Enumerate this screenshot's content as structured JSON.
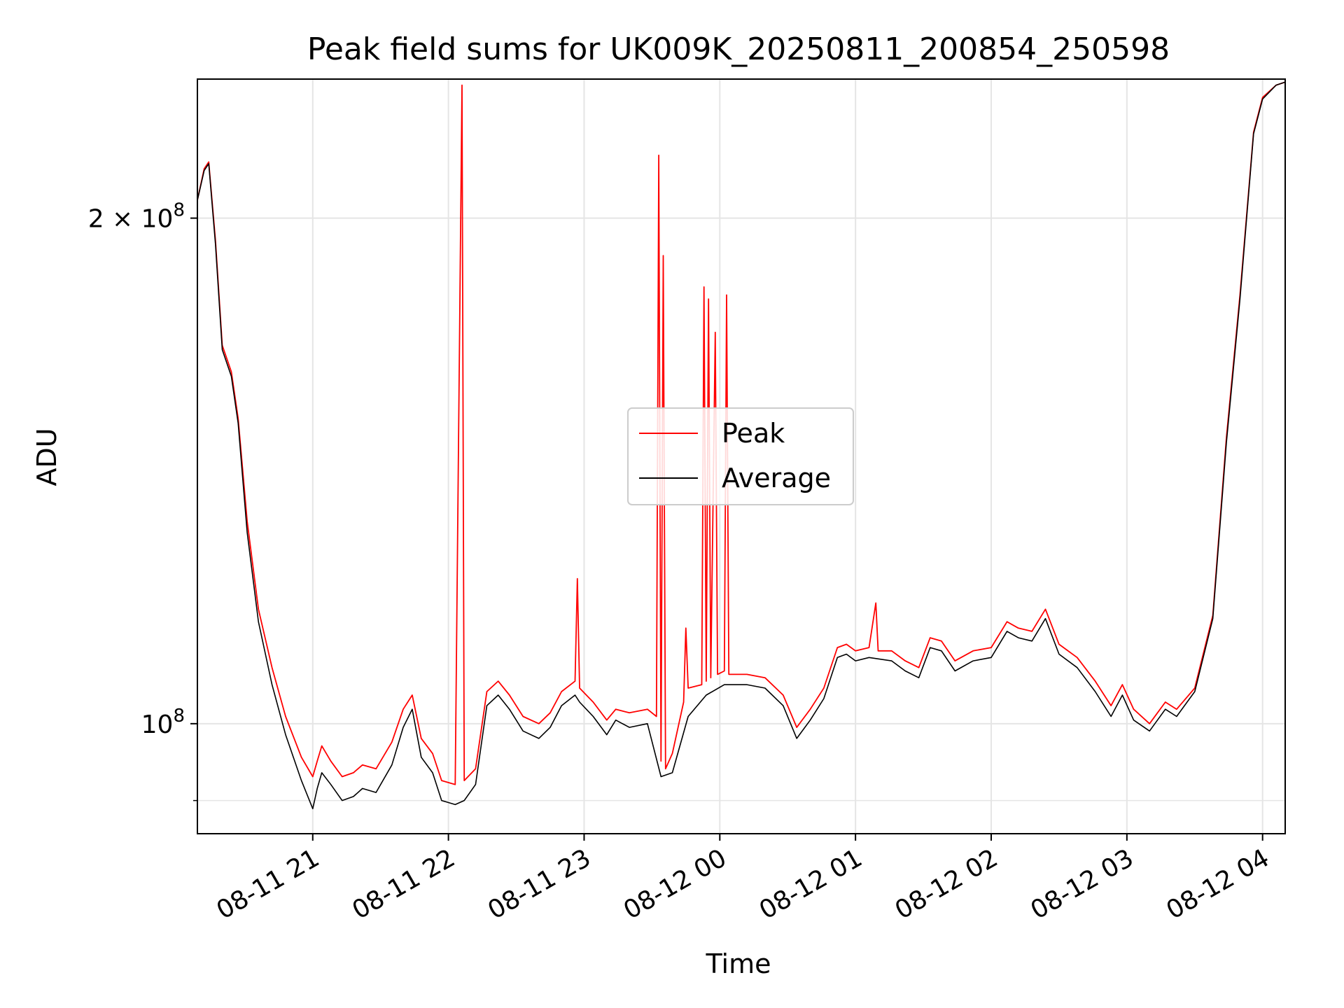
{
  "chart_data": {
    "type": "line",
    "title": "Peak field sums for UK009K_20250811_200854_250598",
    "xlabel": "Time",
    "ylabel": "ADU",
    "yscale": "log",
    "grid": true,
    "legend_position": "center",
    "x_ticks": [
      "08-11 21",
      "08-11 22",
      "08-11 23",
      "08-12 00",
      "08-12 01",
      "08-12 02",
      "08-12 03",
      "08-12 04"
    ],
    "y_ticks": [
      {
        "value": 100000000,
        "base": "10",
        "exp": "8"
      },
      {
        "value": 200000000,
        "base": "2 × 10",
        "exp": "8"
      }
    ],
    "xlim": [
      "2025-08-11 20:09",
      "2025-08-12 04:10"
    ],
    "ylim": [
      86000000,
      242000000
    ],
    "series": [
      {
        "name": "Peak",
        "color": "#ff0000",
        "points": [
          [
            "2025-08-11 20:09",
            205000000
          ],
          [
            "2025-08-11 20:12",
            214000000
          ],
          [
            "2025-08-11 20:14",
            216000000
          ],
          [
            "2025-08-11 20:17",
            194000000
          ],
          [
            "2025-08-11 20:20",
            168000000
          ],
          [
            "2025-08-11 20:24",
            162000000
          ],
          [
            "2025-08-11 20:27",
            152000000
          ],
          [
            "2025-08-11 20:31",
            132000000
          ],
          [
            "2025-08-11 20:36",
            117000000
          ],
          [
            "2025-08-11 20:42",
            108000000
          ],
          [
            "2025-08-11 20:48",
            101000000
          ],
          [
            "2025-08-11 20:55",
            95500000
          ],
          [
            "2025-08-11 21:00",
            93000000
          ],
          [
            "2025-08-11 21:02",
            95000000
          ],
          [
            "2025-08-11 21:04",
            97000000
          ],
          [
            "2025-08-11 21:08",
            95000000
          ],
          [
            "2025-08-11 21:13",
            93000000
          ],
          [
            "2025-08-11 21:18",
            93500000
          ],
          [
            "2025-08-11 21:22",
            94500000
          ],
          [
            "2025-08-11 21:28",
            94000000
          ],
          [
            "2025-08-11 21:35",
            97500000
          ],
          [
            "2025-08-11 21:40",
            102000000
          ],
          [
            "2025-08-11 21:44",
            104000000
          ],
          [
            "2025-08-11 21:48",
            98000000
          ],
          [
            "2025-08-11 21:53",
            96000000
          ],
          [
            "2025-08-11 21:57",
            92500000
          ],
          [
            "2025-08-11 22:03",
            92000000
          ],
          [
            "2025-08-11 22:06",
            240000000
          ],
          [
            "2025-08-11 22:07",
            92500000
          ],
          [
            "2025-08-11 22:12",
            94000000
          ],
          [
            "2025-08-11 22:17",
            104500000
          ],
          [
            "2025-08-11 22:22",
            106000000
          ],
          [
            "2025-08-11 22:27",
            104000000
          ],
          [
            "2025-08-11 22:33",
            101000000
          ],
          [
            "2025-08-11 22:40",
            100000000
          ],
          [
            "2025-08-11 22:45",
            101500000
          ],
          [
            "2025-08-11 22:50",
            104500000
          ],
          [
            "2025-08-11 22:56",
            106000000
          ],
          [
            "2025-08-11 22:57",
            122000000
          ],
          [
            "2025-08-11 22:58",
            105000000
          ],
          [
            "2025-08-11 23:04",
            103000000
          ],
          [
            "2025-08-11 23:10",
            100500000
          ],
          [
            "2025-08-11 23:14",
            102000000
          ],
          [
            "2025-08-11 23:20",
            101500000
          ],
          [
            "2025-08-11 23:28",
            102000000
          ],
          [
            "2025-08-11 23:32",
            101000000
          ],
          [
            "2025-08-11 23:33",
            218000000
          ],
          [
            "2025-08-11 23:34",
            95000000
          ],
          [
            "2025-08-11 23:35",
            190000000
          ],
          [
            "2025-08-11 23:36",
            94000000
          ],
          [
            "2025-08-11 23:39",
            96000000
          ],
          [
            "2025-08-11 23:44",
            103000000
          ],
          [
            "2025-08-11 23:45",
            114000000
          ],
          [
            "2025-08-11 23:46",
            105000000
          ],
          [
            "2025-08-11 23:52",
            105500000
          ],
          [
            "2025-08-11 23:53",
            182000000
          ],
          [
            "2025-08-11 23:54",
            106000000
          ],
          [
            "2025-08-11 23:55",
            179000000
          ],
          [
            "2025-08-11 23:56",
            106500000
          ],
          [
            "2025-08-11 23:58",
            171000000
          ],
          [
            "2025-08-11 23:59",
            107000000
          ],
          [
            "2025-08-12 00:02",
            107500000
          ],
          [
            "2025-08-12 00:03",
            180000000
          ],
          [
            "2025-08-12 00:04",
            107000000
          ],
          [
            "2025-08-12 00:12",
            107000000
          ],
          [
            "2025-08-12 00:20",
            106500000
          ],
          [
            "2025-08-12 00:28",
            104000000
          ],
          [
            "2025-08-12 00:34",
            99500000
          ],
          [
            "2025-08-12 00:40",
            102000000
          ],
          [
            "2025-08-12 00:46",
            105000000
          ],
          [
            "2025-08-12 00:52",
            111000000
          ],
          [
            "2025-08-12 00:56",
            111500000
          ],
          [
            "2025-08-12 01:00",
            110500000
          ],
          [
            "2025-08-12 01:06",
            111000000
          ],
          [
            "2025-08-12 01:09",
            118000000
          ],
          [
            "2025-08-12 01:10",
            110500000
          ],
          [
            "2025-08-12 01:16",
            110500000
          ],
          [
            "2025-08-12 01:22",
            109000000
          ],
          [
            "2025-08-12 01:28",
            108000000
          ],
          [
            "2025-08-12 01:33",
            112500000
          ],
          [
            "2025-08-12 01:38",
            112000000
          ],
          [
            "2025-08-12 01:44",
            109000000
          ],
          [
            "2025-08-12 01:52",
            110500000
          ],
          [
            "2025-08-12 02:00",
            111000000
          ],
          [
            "2025-08-12 02:07",
            115000000
          ],
          [
            "2025-08-12 02:12",
            114000000
          ],
          [
            "2025-08-12 02:18",
            113500000
          ],
          [
            "2025-08-12 02:24",
            117000000
          ],
          [
            "2025-08-12 02:30",
            111500000
          ],
          [
            "2025-08-12 02:38",
            109500000
          ],
          [
            "2025-08-12 02:46",
            106000000
          ],
          [
            "2025-08-12 02:53",
            102500000
          ],
          [
            "2025-08-12 02:58",
            105500000
          ],
          [
            "2025-08-12 03:03",
            102000000
          ],
          [
            "2025-08-12 03:10",
            100000000
          ],
          [
            "2025-08-12 03:17",
            103000000
          ],
          [
            "2025-08-12 03:22",
            102000000
          ],
          [
            "2025-08-12 03:30",
            105000000
          ],
          [
            "2025-08-12 03:38",
            116000000
          ],
          [
            "2025-08-12 03:44",
            148000000
          ],
          [
            "2025-08-12 03:50",
            180000000
          ],
          [
            "2025-08-12 03:56",
            225000000
          ],
          [
            "2025-08-12 04:00",
            236000000
          ],
          [
            "2025-08-12 04:06",
            240000000
          ],
          [
            "2025-08-12 04:10",
            241000000
          ]
        ]
      },
      {
        "name": "Average",
        "color": "#000000",
        "points": [
          [
            "2025-08-11 20:09",
            205000000
          ],
          [
            "2025-08-11 20:12",
            213500000
          ],
          [
            "2025-08-11 20:14",
            215500000
          ],
          [
            "2025-08-11 20:17",
            193000000
          ],
          [
            "2025-08-11 20:20",
            167000000
          ],
          [
            "2025-08-11 20:24",
            161000000
          ],
          [
            "2025-08-11 20:27",
            151000000
          ],
          [
            "2025-08-11 20:31",
            130000000
          ],
          [
            "2025-08-11 20:36",
            115000000
          ],
          [
            "2025-08-11 20:42",
            105500000
          ],
          [
            "2025-08-11 20:48",
            98500000
          ],
          [
            "2025-08-11 20:55",
            92500000
          ],
          [
            "2025-08-11 21:00",
            89000000
          ],
          [
            "2025-08-11 21:02",
            91500000
          ],
          [
            "2025-08-11 21:04",
            93500000
          ],
          [
            "2025-08-11 21:08",
            92000000
          ],
          [
            "2025-08-11 21:13",
            90000000
          ],
          [
            "2025-08-11 21:18",
            90500000
          ],
          [
            "2025-08-11 21:22",
            91500000
          ],
          [
            "2025-08-11 21:28",
            91000000
          ],
          [
            "2025-08-11 21:35",
            94500000
          ],
          [
            "2025-08-11 21:40",
            99500000
          ],
          [
            "2025-08-11 21:44",
            102000000
          ],
          [
            "2025-08-11 21:48",
            95500000
          ],
          [
            "2025-08-11 21:53",
            93500000
          ],
          [
            "2025-08-11 21:57",
            90000000
          ],
          [
            "2025-08-11 22:03",
            89500000
          ],
          [
            "2025-08-11 22:07",
            90000000
          ],
          [
            "2025-08-11 22:12",
            92000000
          ],
          [
            "2025-08-11 22:17",
            102500000
          ],
          [
            "2025-08-11 22:22",
            104000000
          ],
          [
            "2025-08-11 22:27",
            102000000
          ],
          [
            "2025-08-11 22:33",
            99000000
          ],
          [
            "2025-08-11 22:40",
            98000000
          ],
          [
            "2025-08-11 22:45",
            99500000
          ],
          [
            "2025-08-11 22:50",
            102500000
          ],
          [
            "2025-08-11 22:56",
            104000000
          ],
          [
            "2025-08-11 22:58",
            103000000
          ],
          [
            "2025-08-11 23:04",
            101000000
          ],
          [
            "2025-08-11 23:10",
            98500000
          ],
          [
            "2025-08-11 23:14",
            100500000
          ],
          [
            "2025-08-11 23:20",
            99500000
          ],
          [
            "2025-08-11 23:28",
            100000000
          ],
          [
            "2025-08-11 23:34",
            93000000
          ],
          [
            "2025-08-11 23:39",
            93500000
          ],
          [
            "2025-08-11 23:46",
            101000000
          ],
          [
            "2025-08-11 23:54",
            104000000
          ],
          [
            "2025-08-12 00:02",
            105500000
          ],
          [
            "2025-08-12 00:12",
            105500000
          ],
          [
            "2025-08-12 00:20",
            105000000
          ],
          [
            "2025-08-12 00:28",
            102500000
          ],
          [
            "2025-08-12 00:34",
            98000000
          ],
          [
            "2025-08-12 00:40",
            100500000
          ],
          [
            "2025-08-12 00:46",
            103500000
          ],
          [
            "2025-08-12 00:52",
            109500000
          ],
          [
            "2025-08-12 00:56",
            110000000
          ],
          [
            "2025-08-12 01:00",
            109000000
          ],
          [
            "2025-08-12 01:06",
            109500000
          ],
          [
            "2025-08-12 01:16",
            109000000
          ],
          [
            "2025-08-12 01:22",
            107500000
          ],
          [
            "2025-08-12 01:28",
            106500000
          ],
          [
            "2025-08-12 01:33",
            111000000
          ],
          [
            "2025-08-12 01:38",
            110500000
          ],
          [
            "2025-08-12 01:44",
            107500000
          ],
          [
            "2025-08-12 01:52",
            109000000
          ],
          [
            "2025-08-12 02:00",
            109500000
          ],
          [
            "2025-08-12 02:07",
            113500000
          ],
          [
            "2025-08-12 02:12",
            112500000
          ],
          [
            "2025-08-12 02:18",
            112000000
          ],
          [
            "2025-08-12 02:24",
            115500000
          ],
          [
            "2025-08-12 02:30",
            110000000
          ],
          [
            "2025-08-12 02:38",
            108000000
          ],
          [
            "2025-08-12 02:46",
            104500000
          ],
          [
            "2025-08-12 02:53",
            101000000
          ],
          [
            "2025-08-12 02:58",
            104000000
          ],
          [
            "2025-08-12 03:03",
            100500000
          ],
          [
            "2025-08-12 03:10",
            99000000
          ],
          [
            "2025-08-12 03:17",
            102000000
          ],
          [
            "2025-08-12 03:22",
            101000000
          ],
          [
            "2025-08-12 03:30",
            104500000
          ],
          [
            "2025-08-12 03:38",
            115500000
          ],
          [
            "2025-08-12 03:44",
            147000000
          ],
          [
            "2025-08-12 03:50",
            179000000
          ],
          [
            "2025-08-12 03:56",
            224500000
          ],
          [
            "2025-08-12 04:00",
            235500000
          ],
          [
            "2025-08-12 04:06",
            240000000
          ],
          [
            "2025-08-12 04:10",
            241000000
          ]
        ]
      }
    ]
  }
}
